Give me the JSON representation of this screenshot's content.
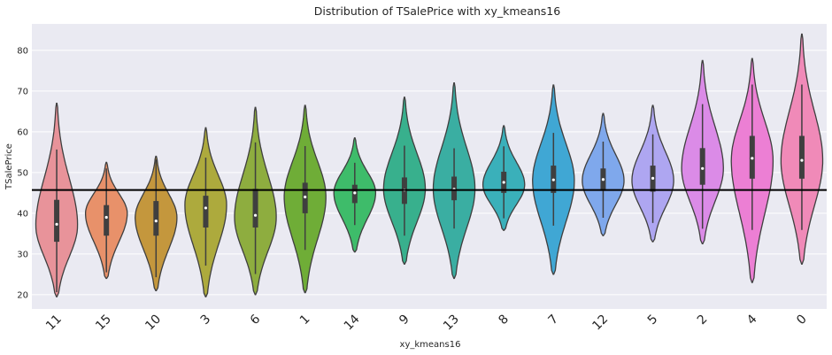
{
  "chart_data": {
    "type": "violin",
    "title": "Distribution of TSalePrice with xy_kmeans16",
    "xlabel": "xy_kmeans16",
    "ylabel": "TSalePrice",
    "ylim": [
      16.5,
      86.5
    ],
    "yticks": [
      20,
      30,
      40,
      50,
      60,
      70,
      80
    ],
    "grid": true,
    "reference_line": 45.7,
    "categories": [
      "11",
      "15",
      "10",
      "3",
      "6",
      "1",
      "14",
      "9",
      "13",
      "8",
      "7",
      "12",
      "5",
      "2",
      "4",
      "0"
    ],
    "colors": [
      "#e8939a",
      "#e8916a",
      "#c4973d",
      "#adaa3d",
      "#8ead3f",
      "#6fad37",
      "#3ebc6a",
      "#38b08d",
      "#3aaea2",
      "#3ab0ba",
      "#40a7d4",
      "#7fa8ec",
      "#aea6f1",
      "#db8be7",
      "#ec7fd4",
      "#f08ab8"
    ],
    "series": [
      {
        "min": 19.5,
        "max": 67,
        "q1": 33,
        "median": 37.3,
        "q3": 43.3,
        "mode": 37
      },
      {
        "min": 24,
        "max": 52.5,
        "q1": 34.5,
        "median": 39,
        "q3": 42,
        "mode": 40
      },
      {
        "min": 21,
        "max": 54,
        "q1": 34.5,
        "median": 38.1,
        "q3": 43,
        "mode": 39
      },
      {
        "min": 19.5,
        "max": 61,
        "q1": 36.5,
        "median": 41.3,
        "q3": 44.3,
        "mode": 42
      },
      {
        "min": 20,
        "max": 66,
        "q1": 36.5,
        "median": 39.5,
        "q3": 46,
        "mode": 39
      },
      {
        "min": 20.5,
        "max": 66.5,
        "q1": 40,
        "median": 44,
        "q3": 47.5,
        "mode": 44
      },
      {
        "min": 30.5,
        "max": 58.5,
        "q1": 42.5,
        "median": 45,
        "q3": 47,
        "mode": 45
      },
      {
        "min": 27.5,
        "max": 68.5,
        "q1": 42.3,
        "median": 45.7,
        "q3": 48.8,
        "mode": 46
      },
      {
        "min": 24,
        "max": 72,
        "q1": 43.2,
        "median": 45.9,
        "q3": 49,
        "mode": 46
      },
      {
        "min": 35.8,
        "max": 61.5,
        "q1": 45,
        "median": 47.6,
        "q3": 50.2,
        "mode": 47
      },
      {
        "min": 25,
        "max": 71.5,
        "q1": 45,
        "median": 48.2,
        "q3": 51.7,
        "mode": 48
      },
      {
        "min": 34.5,
        "max": 64.5,
        "q1": 45.5,
        "median": 48.3,
        "q3": 51,
        "mode": 48
      },
      {
        "min": 33,
        "max": 66.5,
        "q1": 45.3,
        "median": 48.6,
        "q3": 51.7,
        "mode": 48
      },
      {
        "min": 32.5,
        "max": 77.5,
        "q1": 47,
        "median": 51,
        "q3": 56,
        "mode": 51
      },
      {
        "min": 23,
        "max": 78,
        "q1": 48.5,
        "median": 53.5,
        "q3": 59,
        "mode": 53
      },
      {
        "min": 27.5,
        "max": 84,
        "q1": 48.5,
        "median": 53,
        "q3": 59,
        "mode": 53
      }
    ]
  }
}
